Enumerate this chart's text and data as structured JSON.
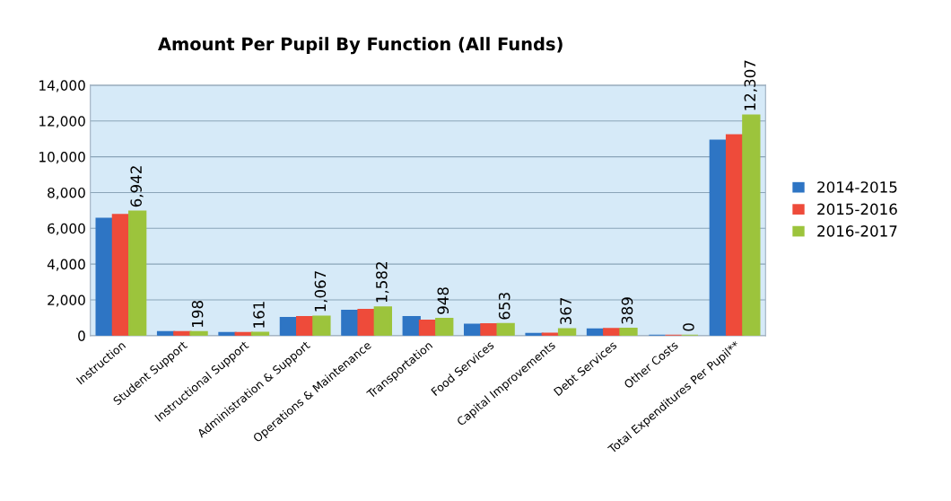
{
  "chart_data": {
    "type": "bar",
    "title": "Amount Per Pupil By Function (All Funds)",
    "categories": [
      "Instruction",
      "Student Support",
      "Instructional Support",
      "Administration & Support",
      "Operations & Maintenance",
      "Transportation",
      "Food Services",
      "Capital Improvements",
      "Debt Services",
      "Other Costs",
      "Total Expenditures Per Pupil**"
    ],
    "series": [
      {
        "name": "2014-2015",
        "color": "#2e75c4",
        "values": [
          6540,
          200,
          150,
          1000,
          1400,
          1050,
          620,
          100,
          350,
          0,
          10900
        ]
      },
      {
        "name": "2015-2016",
        "color": "#ee4b3a",
        "values": [
          6750,
          200,
          150,
          1050,
          1450,
          850,
          640,
          120,
          380,
          0,
          11200
        ]
      },
      {
        "name": "2016-2017",
        "color": "#9cc43c",
        "values": [
          6942,
          198,
          161,
          1067,
          1582,
          948,
          653,
          367,
          389,
          0,
          12307
        ],
        "value_labels": [
          "6,942",
          "198",
          "161",
          "1,067",
          "1,582",
          "948",
          "653",
          "367",
          "389",
          "0",
          "12,307"
        ]
      }
    ],
    "ylim": [
      0,
      14000
    ],
    "yticks": [
      {
        "value": 0,
        "label": "0"
      },
      {
        "value": 2000,
        "label": "2,000"
      },
      {
        "value": 4000,
        "label": "4,000"
      },
      {
        "value": 6000,
        "label": "6,000"
      },
      {
        "value": 8000,
        "label": "8,000"
      },
      {
        "value": 10000,
        "label": "10,000"
      },
      {
        "value": 12000,
        "label": "12,000"
      },
      {
        "value": 14000,
        "label": "14,000"
      }
    ],
    "grid": "y",
    "legend": "right"
  }
}
